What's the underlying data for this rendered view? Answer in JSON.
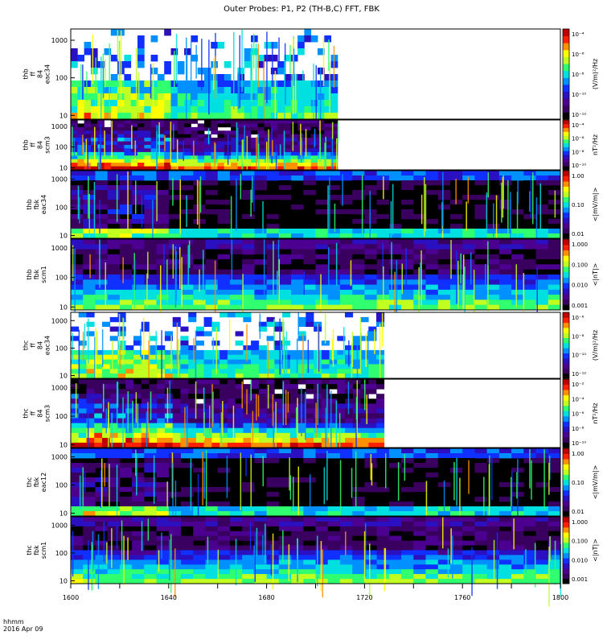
{
  "title": "Outer Probes: P1, P2 (TH-B,C) FFT, FBK",
  "footer": {
    "hhmm": "hhmm",
    "date": "2016 Apr 09"
  },
  "chart_data": {
    "type": "heatmap",
    "xlim": [
      1600,
      1800
    ],
    "x_ticks": [
      "1600",
      "1620",
      "1640",
      "1660",
      "1680",
      "1700",
      "1720",
      "1740",
      "1760",
      "1780",
      "1800"
    ],
    "colorscale": [
      "#000000",
      "#3a0060",
      "#4b0090",
      "#2a10c0",
      "#1030ff",
      "#0090ff",
      "#00e0e0",
      "#30ff70",
      "#c0ff20",
      "#ffff00",
      "#ff9000",
      "#ff2000",
      "#c00000"
    ],
    "panels": [
      {
        "id": "thb_ff_eac34",
        "ylabel": [
          "thb",
          "ff",
          "84",
          "eac34"
        ],
        "y_ticks": [
          "1000",
          "100",
          "10"
        ],
        "kind": "fft_e",
        "data_end": 1709,
        "colorbar_ticks": [
          "10⁻⁴",
          "10⁻⁶",
          "10⁻⁸",
          "10⁻¹⁰",
          "10⁻¹²"
        ],
        "colorbar_label": "(V/m)²/Hz"
      },
      {
        "id": "thb_ff_scm3",
        "ylabel": [
          "thb",
          "ff",
          "84",
          "scm3"
        ],
        "y_ticks": [
          "1000",
          "100",
          "10"
        ],
        "kind": "fft_b",
        "data_end": 1709,
        "colorbar_ticks": [
          "10⁻⁴",
          "10⁻⁶",
          "10⁻⁸",
          "10⁻¹⁰"
        ],
        "colorbar_label": "nT²/Hz"
      },
      {
        "id": "thb_fbk_eac34",
        "ylabel": [
          "thb",
          "fbk",
          "eac34"
        ],
        "y_ticks": [
          "1000",
          "100",
          "10"
        ],
        "kind": "fbk_e",
        "data_end": 1800,
        "colorbar_ticks": [
          "1.00",
          "0.10",
          "0.01"
        ],
        "colorbar_label": "<|mV/m|>"
      },
      {
        "id": "thb_fbk_scm1",
        "ylabel": [
          "thb",
          "fbk",
          "scm1"
        ],
        "y_ticks": [
          "1000",
          "100",
          "10"
        ],
        "kind": "fbk_b",
        "data_end": 1800,
        "colorbar_ticks": [
          "1.000",
          "0.100",
          "0.010",
          "0.001"
        ],
        "colorbar_label": "<|nT|>"
      },
      {
        "id": "thc_ff_eac34",
        "ylabel": [
          "thc",
          "ff",
          "84",
          "eac34"
        ],
        "y_ticks": [
          "1000",
          "100",
          "10"
        ],
        "kind": "fft_e",
        "data_end": 1728,
        "colorbar_ticks": [
          "10⁻⁶",
          "10⁻⁸",
          "10⁻¹⁰",
          "10⁻¹²"
        ],
        "colorbar_label": "(V/m)²/Hz"
      },
      {
        "id": "thc_ff_scm3",
        "ylabel": [
          "thc",
          "ff",
          "84",
          "scm3"
        ],
        "y_ticks": [
          "1000",
          "100",
          "10"
        ],
        "kind": "fft_b",
        "data_end": 1728,
        "colorbar_ticks": [
          "10⁻²",
          "10⁻⁴",
          "10⁻⁶",
          "10⁻⁸",
          "10⁻¹⁰"
        ],
        "colorbar_label": "nT²/Hz"
      },
      {
        "id": "thc_fbk_eac12",
        "ylabel": [
          "thc",
          "fbk",
          "eac12"
        ],
        "y_ticks": [
          "1000",
          "100",
          "10"
        ],
        "kind": "fbk_e",
        "data_end": 1800,
        "colorbar_ticks": [
          "1.00",
          "0.10",
          "0.01"
        ],
        "colorbar_label": "<|mV/m|>"
      },
      {
        "id": "thc_fbk_scm1",
        "ylabel": [
          "thc",
          "fbk",
          "scm1"
        ],
        "y_ticks": [
          "1000",
          "100",
          "10"
        ],
        "kind": "fbk_b",
        "data_end": 1800,
        "colorbar_ticks": [
          "1.000",
          "0.100",
          "0.010",
          "0.001"
        ],
        "colorbar_label": "<|nT|>"
      }
    ]
  }
}
